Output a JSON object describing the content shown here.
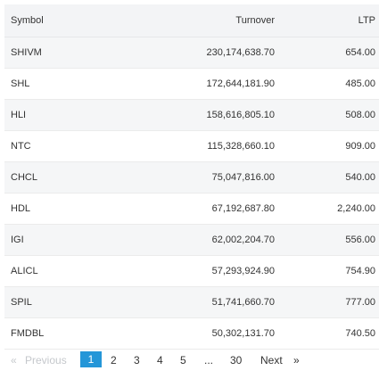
{
  "table": {
    "headers": {
      "symbol": "Symbol",
      "turnover": "Turnover",
      "ltp": "LTP"
    },
    "rows": [
      {
        "symbol": "SHIVM",
        "turnover": "230,174,638.70",
        "ltp": "654.00"
      },
      {
        "symbol": "SHL",
        "turnover": "172,644,181.90",
        "ltp": "485.00"
      },
      {
        "symbol": "HLI",
        "turnover": "158,616,805.10",
        "ltp": "508.00"
      },
      {
        "symbol": "NTC",
        "turnover": "115,328,660.10",
        "ltp": "909.00"
      },
      {
        "symbol": "CHCL",
        "turnover": "75,047,816.00",
        "ltp": "540.00"
      },
      {
        "symbol": "HDL",
        "turnover": "67,192,687.80",
        "ltp": "2,240.00"
      },
      {
        "symbol": "IGI",
        "turnover": "62,002,204.70",
        "ltp": "556.00"
      },
      {
        "symbol": "ALICL",
        "turnover": "57,293,924.90",
        "ltp": "754.90"
      },
      {
        "symbol": "SPIL",
        "turnover": "51,741,660.70",
        "ltp": "777.00"
      },
      {
        "symbol": "FMDBL",
        "turnover": "50,302,131.70",
        "ltp": "740.50"
      }
    ]
  },
  "pagination": {
    "laquo": "«",
    "previous": "Previous",
    "pages": [
      "1",
      "2",
      "3",
      "4",
      "5"
    ],
    "ellipsis": "...",
    "last_page": "30",
    "next": "Next",
    "raquo": "»",
    "active_page": "1"
  },
  "colors": {
    "header_bg": "#f3f4f6",
    "alt_row_bg": "#f5f6f7",
    "active_page_bg": "#2496d8",
    "disabled_text": "#c5c8cc"
  }
}
